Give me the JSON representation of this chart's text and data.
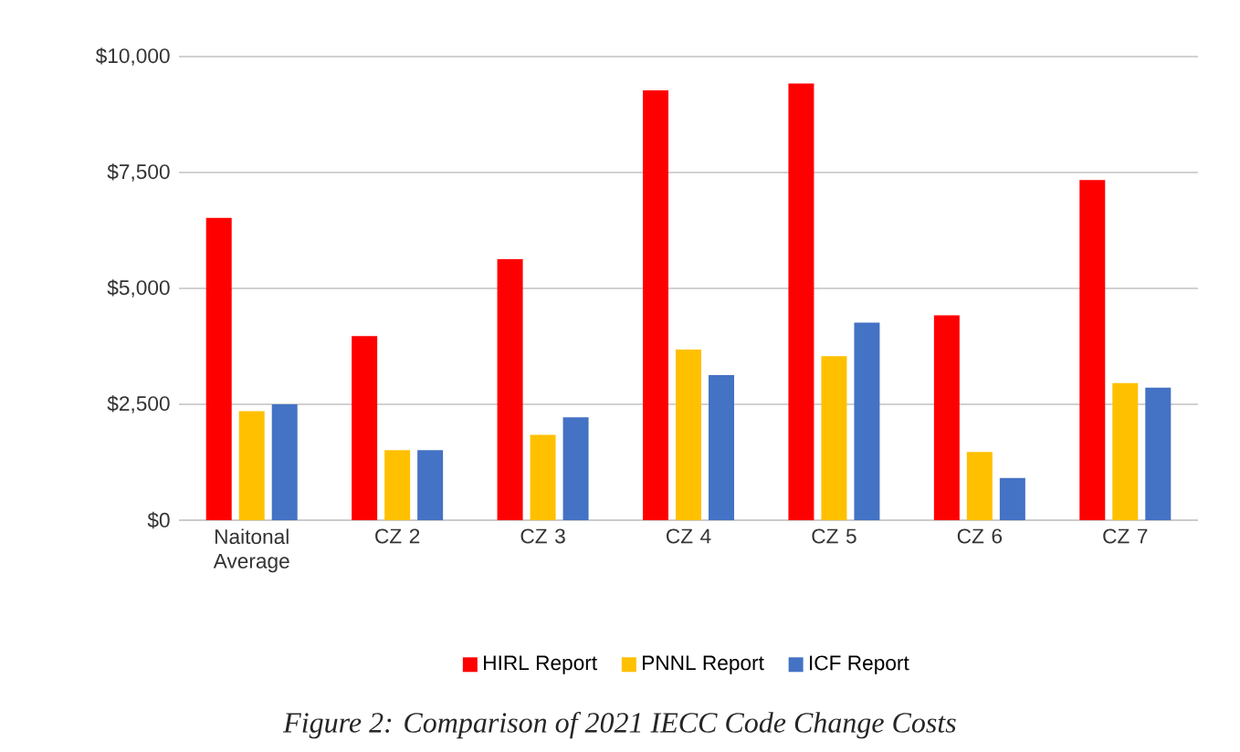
{
  "chart_data": {
    "type": "bar",
    "categories": [
      "Naitonal Average",
      "CZ 2",
      "CZ 3",
      "CZ 4",
      "CZ 5",
      "CZ 6",
      "CZ 7"
    ],
    "series": [
      {
        "name": "HIRL Report",
        "color": "#ff0000",
        "values": [
          6520,
          3970,
          5630,
          9270,
          9420,
          4420,
          7340
        ]
      },
      {
        "name": "PNNL Report",
        "color": "#ffc000",
        "values": [
          2350,
          1510,
          1840,
          3680,
          3540,
          1470,
          2960
        ]
      },
      {
        "name": "ICF Report",
        "color": "#4472c4",
        "values": [
          2500,
          1510,
          2220,
          3130,
          4260,
          910,
          2860
        ]
      }
    ],
    "ylim": [
      0,
      10000
    ],
    "yticks": [
      {
        "value": 0,
        "label": "$0"
      },
      {
        "value": 2500,
        "label": "$2,500"
      },
      {
        "value": 5000,
        "label": "$5,000"
      },
      {
        "value": 7500,
        "label": "$7,500"
      },
      {
        "value": 10000,
        "label": "$10,000"
      }
    ],
    "grid": "y",
    "legend": "bottom",
    "annotations": [
      "Figure 2: Comparison of 2021 IECC Code Change Costs"
    ]
  }
}
